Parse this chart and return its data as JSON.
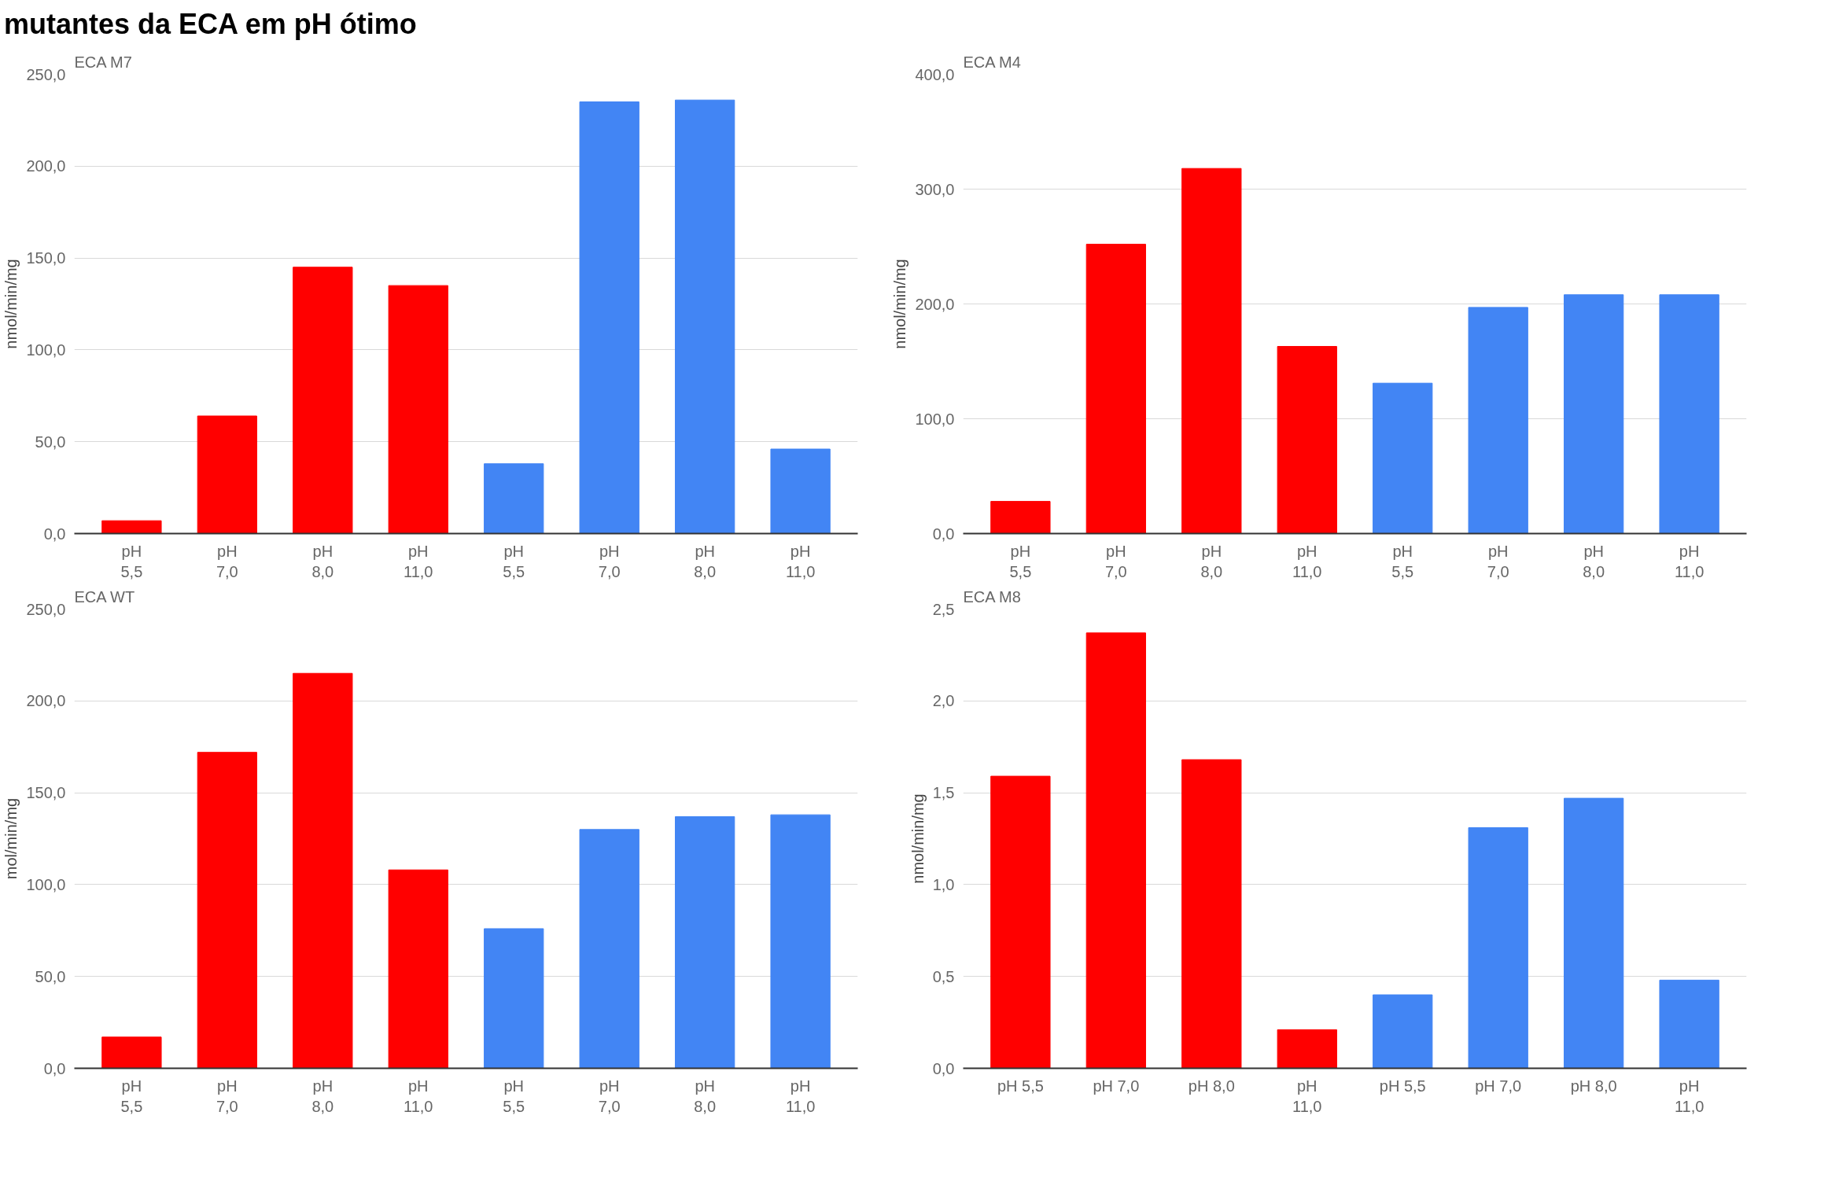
{
  "chart_data": [
    {
      "type": "bar",
      "title": "ECA M7",
      "ylabel": "nmol/min/mg",
      "annotations": [
        "mutantes da ECA em pH ótimo"
      ],
      "categories": [
        "pH\n5,5",
        "pH\n7,0",
        "pH\n8,0",
        "pH\n11,0",
        "pH\n5,5",
        "pH\n7,0",
        "pH\n8,0",
        "pH\n11,0"
      ],
      "values": [
        7,
        64,
        145,
        135,
        38,
        235,
        236,
        46
      ],
      "colors": [
        "#ff0000",
        "#ff0000",
        "#ff0000",
        "#ff0000",
        "#4285f4",
        "#4285f4",
        "#4285f4",
        "#4285f4"
      ],
      "ylim": [
        0,
        250
      ],
      "yticks": [
        {
          "value": 0,
          "label": "0,0"
        },
        {
          "value": 50,
          "label": "50,0"
        },
        {
          "value": 100,
          "label": "100,0"
        },
        {
          "value": 150,
          "label": "150,0"
        },
        {
          "value": 200,
          "label": "200,0"
        },
        {
          "value": 250,
          "label": "250,0"
        }
      ],
      "grid": "y"
    },
    {
      "type": "bar",
      "title": "ECA M4",
      "ylabel": "nmol/min/mg",
      "categories": [
        "pH\n5,5",
        "pH\n7,0",
        "pH\n8,0",
        "pH\n11,0",
        "pH\n5,5",
        "pH\n7,0",
        "pH\n8,0",
        "pH\n11,0"
      ],
      "values": [
        28,
        252,
        318,
        163,
        131,
        197,
        208,
        208
      ],
      "colors": [
        "#ff0000",
        "#ff0000",
        "#ff0000",
        "#ff0000",
        "#4285f4",
        "#4285f4",
        "#4285f4",
        "#4285f4"
      ],
      "ylim": [
        0,
        400
      ],
      "yticks": [
        {
          "value": 0,
          "label": "0,0"
        },
        {
          "value": 100,
          "label": "100,0"
        },
        {
          "value": 200,
          "label": "200,0"
        },
        {
          "value": 300,
          "label": "300,0"
        },
        {
          "value": 400,
          "label": "400,0"
        }
      ],
      "grid": "y"
    },
    {
      "type": "bar",
      "title": "ECA WT",
      "ylabel": "mol/min/mg",
      "categories": [
        "pH\n5,5",
        "pH\n7,0",
        "pH\n8,0",
        "pH\n11,0",
        "pH\n5,5",
        "pH\n7,0",
        "pH\n8,0",
        "pH\n11,0"
      ],
      "values": [
        17,
        172,
        215,
        108,
        76,
        130,
        137,
        138
      ],
      "colors": [
        "#ff0000",
        "#ff0000",
        "#ff0000",
        "#ff0000",
        "#4285f4",
        "#4285f4",
        "#4285f4",
        "#4285f4"
      ],
      "ylim": [
        0,
        250
      ],
      "yticks": [
        {
          "value": 0,
          "label": "0,0"
        },
        {
          "value": 50,
          "label": "50,0"
        },
        {
          "value": 100,
          "label": "100,0"
        },
        {
          "value": 150,
          "label": "150,0"
        },
        {
          "value": 200,
          "label": "200,0"
        },
        {
          "value": 250,
          "label": "250,0"
        }
      ],
      "grid": "y"
    },
    {
      "type": "bar",
      "title": "ECA M8",
      "ylabel": "nmol/min/mg",
      "categories": [
        "pH 5,5",
        "pH 7,0",
        "pH 8,0",
        "pH\n11,0",
        "pH 5,5",
        "pH 7,0",
        "pH 8,0",
        "pH\n11,0"
      ],
      "values": [
        1.59,
        2.37,
        1.68,
        0.21,
        0.4,
        1.31,
        1.47,
        0.48
      ],
      "colors": [
        "#ff0000",
        "#ff0000",
        "#ff0000",
        "#ff0000",
        "#4285f4",
        "#4285f4",
        "#4285f4",
        "#4285f4"
      ],
      "ylim": [
        0,
        2.5
      ],
      "yticks": [
        {
          "value": 0,
          "label": "0,0"
        },
        {
          "value": 0.5,
          "label": "0,5"
        },
        {
          "value": 1,
          "label": "1,0"
        },
        {
          "value": 1.5,
          "label": "1,5"
        },
        {
          "value": 2,
          "label": "2,0"
        },
        {
          "value": 2.5,
          "label": "2,5"
        }
      ],
      "grid": "y"
    }
  ]
}
